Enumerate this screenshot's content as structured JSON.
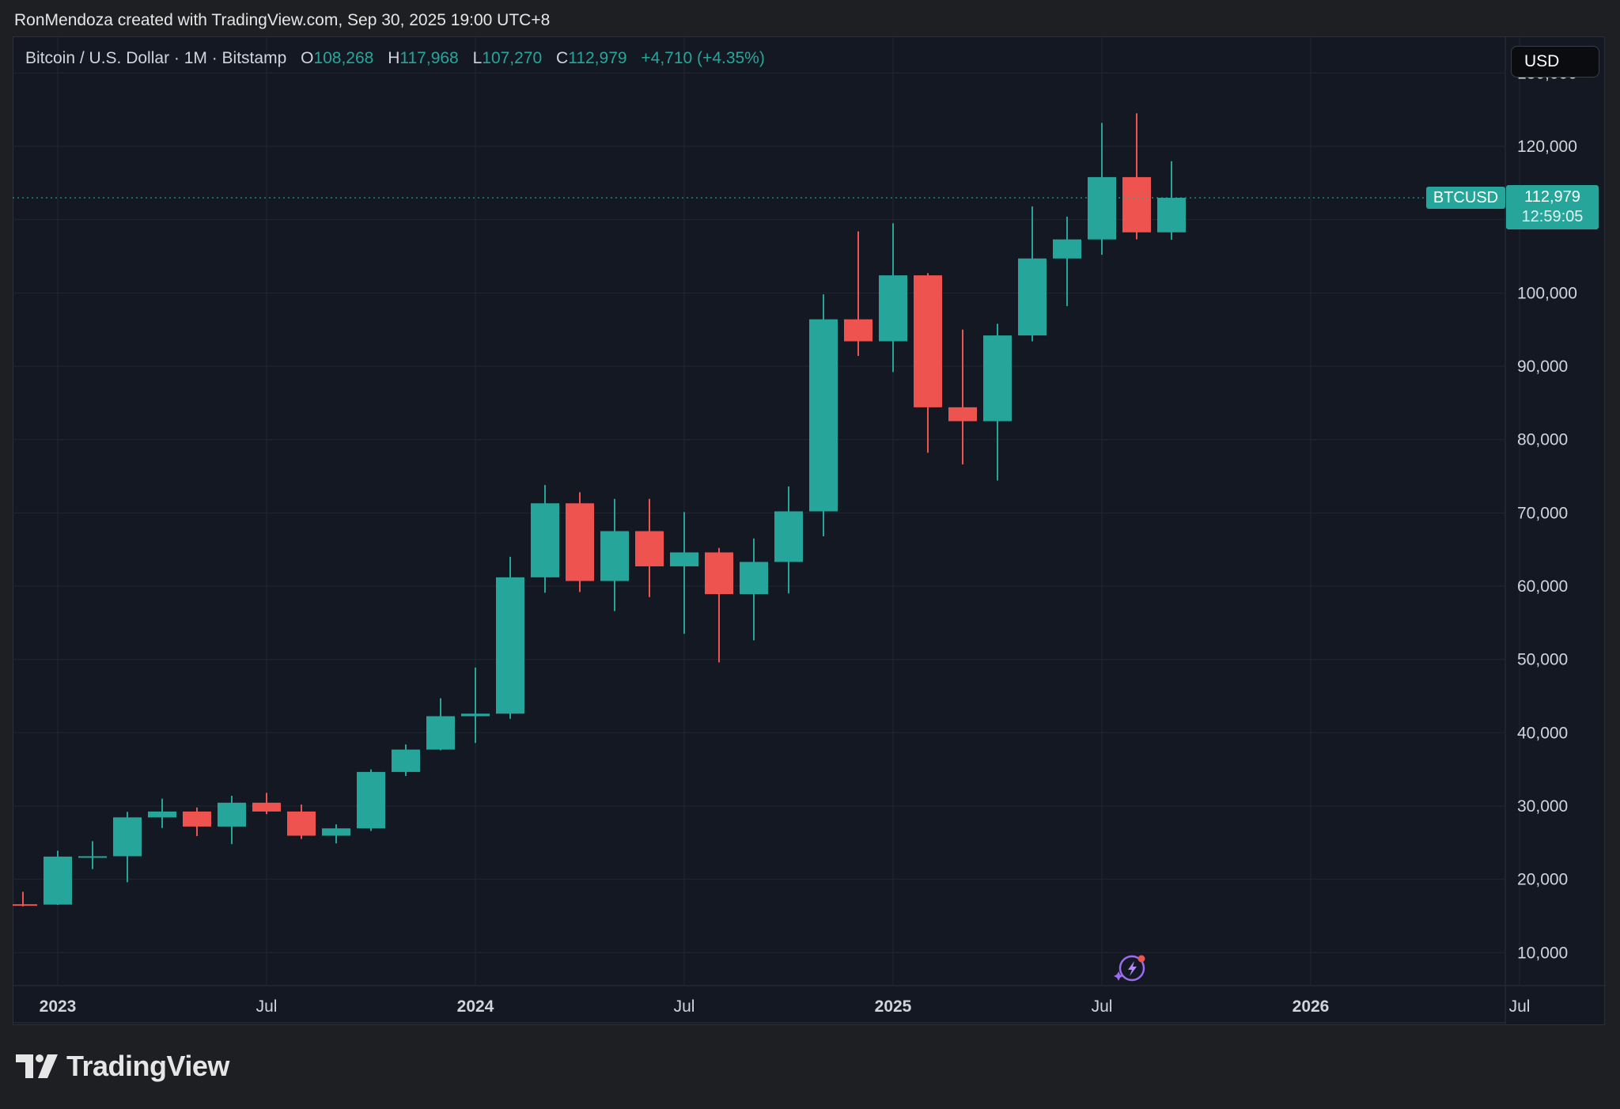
{
  "credit": "RonMendoza created with TradingView.com, Sep 30, 2025 19:00 UTC+8",
  "brand": "TradingView",
  "currency": "USD",
  "symbol": {
    "name": "Bitcoin / U.S. Dollar · 1M · Bitstamp",
    "o_label": "O",
    "o": "108,268",
    "h_label": "H",
    "h": "117,968",
    "l_label": "L",
    "l": "107,270",
    "c_label": "C",
    "c": "112,979",
    "change": "+4,710 (+4.35%)"
  },
  "last_price": {
    "ticker": "BTCUSD",
    "price": "112,979",
    "countdown": "12:59:05",
    "value": 112979
  },
  "colors": {
    "up": "#26a69a",
    "down": "#ef5350",
    "background": "#141823",
    "grid": "#222633",
    "text": "#d1d4dc"
  },
  "chart_data": {
    "type": "candlestick",
    "interval": "1M",
    "ylim": [
      5500,
      135000
    ],
    "y_ticks": [
      10000,
      20000,
      30000,
      40000,
      50000,
      60000,
      70000,
      80000,
      90000,
      100000,
      110000,
      120000,
      130000
    ],
    "y_tick_labels": [
      "10,000",
      "20,000",
      "30,000",
      "40,000",
      "50,000",
      "60,000",
      "70,000",
      "80,000",
      "90,000",
      "100,000",
      "",
      "120,000",
      "130,000"
    ],
    "x_range": [
      "2022-12",
      "2026-08"
    ],
    "x_ticks": [
      {
        "month": "2023-01",
        "label": "2023",
        "bold": true
      },
      {
        "month": "2023-07",
        "label": "Jul",
        "bold": false
      },
      {
        "month": "2024-01",
        "label": "2024",
        "bold": true
      },
      {
        "month": "2024-07",
        "label": "Jul",
        "bold": false
      },
      {
        "month": "2025-01",
        "label": "2025",
        "bold": true
      },
      {
        "month": "2025-07",
        "label": "Jul",
        "bold": false
      },
      {
        "month": "2026-01",
        "label": "2026",
        "bold": true
      },
      {
        "month": "2026-07",
        "label": "Jul",
        "bold": false
      }
    ],
    "candles": [
      {
        "month": "2022-12",
        "open": 16600,
        "high": 18300,
        "low": 16300,
        "close": 16550
      },
      {
        "month": "2023-01",
        "open": 16550,
        "high": 23900,
        "low": 16500,
        "close": 23100
      },
      {
        "month": "2023-02",
        "open": 23100,
        "high": 25200,
        "low": 21400,
        "close": 23150
      },
      {
        "month": "2023-03",
        "open": 23150,
        "high": 29200,
        "low": 19600,
        "close": 28450
      },
      {
        "month": "2023-04",
        "open": 28450,
        "high": 31000,
        "low": 27000,
        "close": 29250
      },
      {
        "month": "2023-05",
        "open": 29250,
        "high": 29800,
        "low": 25900,
        "close": 27200
      },
      {
        "month": "2023-06",
        "open": 27200,
        "high": 31400,
        "low": 24800,
        "close": 30450
      },
      {
        "month": "2023-07",
        "open": 30450,
        "high": 31800,
        "low": 28900,
        "close": 29250
      },
      {
        "month": "2023-08",
        "open": 29250,
        "high": 30200,
        "low": 25500,
        "close": 25950
      },
      {
        "month": "2023-09",
        "open": 25950,
        "high": 27500,
        "low": 24900,
        "close": 26950
      },
      {
        "month": "2023-10",
        "open": 26950,
        "high": 35000,
        "low": 26600,
        "close": 34650
      },
      {
        "month": "2023-11",
        "open": 34650,
        "high": 38400,
        "low": 34100,
        "close": 37700
      },
      {
        "month": "2023-12",
        "open": 37700,
        "high": 44700,
        "low": 37600,
        "close": 42250
      },
      {
        "month": "2024-01",
        "open": 42250,
        "high": 48900,
        "low": 38600,
        "close": 42600
      },
      {
        "month": "2024-02",
        "open": 42600,
        "high": 64000,
        "low": 41900,
        "close": 61200
      },
      {
        "month": "2024-03",
        "open": 61200,
        "high": 73800,
        "low": 59100,
        "close": 71300
      },
      {
        "month": "2024-04",
        "open": 71300,
        "high": 72800,
        "low": 59200,
        "close": 60700
      },
      {
        "month": "2024-05",
        "open": 60700,
        "high": 71900,
        "low": 56600,
        "close": 67500
      },
      {
        "month": "2024-06",
        "open": 67500,
        "high": 71900,
        "low": 58500,
        "close": 62700
      },
      {
        "month": "2024-07",
        "open": 62700,
        "high": 70100,
        "low": 53500,
        "close": 64600
      },
      {
        "month": "2024-08",
        "open": 64600,
        "high": 65200,
        "low": 49600,
        "close": 58900
      },
      {
        "month": "2024-09",
        "open": 58900,
        "high": 66500,
        "low": 52600,
        "close": 63300
      },
      {
        "month": "2024-10",
        "open": 63300,
        "high": 73600,
        "low": 59000,
        "close": 70200
      },
      {
        "month": "2024-11",
        "open": 70200,
        "high": 99800,
        "low": 66800,
        "close": 96400
      },
      {
        "month": "2024-12",
        "open": 96400,
        "high": 108400,
        "low": 91400,
        "close": 93400
      },
      {
        "month": "2025-01",
        "open": 93400,
        "high": 109500,
        "low": 89200,
        "close": 102400
      },
      {
        "month": "2025-02",
        "open": 102400,
        "high": 102700,
        "low": 78200,
        "close": 84400
      },
      {
        "month": "2025-03",
        "open": 84400,
        "high": 95000,
        "low": 76600,
        "close": 82500
      },
      {
        "month": "2025-04",
        "open": 82500,
        "high": 95800,
        "low": 74400,
        "close": 94200
      },
      {
        "month": "2025-05",
        "open": 94200,
        "high": 111800,
        "low": 93400,
        "close": 104700
      },
      {
        "month": "2025-06",
        "open": 104700,
        "high": 110400,
        "low": 98200,
        "close": 107300
      },
      {
        "month": "2025-07",
        "open": 107300,
        "high": 123200,
        "low": 105200,
        "close": 115800
      },
      {
        "month": "2025-08",
        "open": 115800,
        "high": 124500,
        "low": 107300,
        "close": 108268
      },
      {
        "month": "2025-09",
        "open": 108268,
        "high": 117968,
        "low": 107270,
        "close": 112979
      }
    ]
  }
}
